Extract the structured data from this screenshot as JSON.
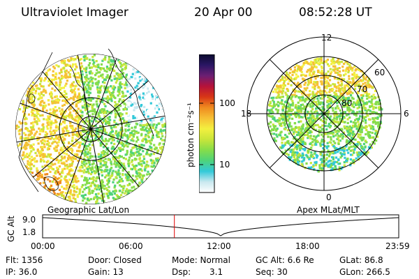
{
  "header": {
    "instrument": "Ultraviolet Imager",
    "date": "20 Apr 00",
    "time": "08:52:28 UT"
  },
  "colorbar": {
    "unit_label": "photon cm⁻²s⁻¹",
    "ticks": [
      "100",
      "10"
    ],
    "stops": [
      "#ffffff",
      "#c9e8ef",
      "#33c9d9",
      "#4ed37a",
      "#86dd4a",
      "#c9e53a",
      "#f3f03f",
      "#f6c035",
      "#ef8b1f",
      "#d83616",
      "#b5123a",
      "#6b1f73",
      "#2a1664",
      "#0b0b2e"
    ]
  },
  "geo_map": {
    "caption": "Geographic Lat/Lon"
  },
  "polar_map": {
    "caption": "Apex MLat/MLT",
    "mlt_labels": {
      "top": "12",
      "bottom": "0",
      "left": "18",
      "right": "6"
    },
    "lat_labels": [
      "60",
      "70",
      "80"
    ]
  },
  "altitude_plot": {
    "ylabel": "GC Alt",
    "yticks": [
      "9.0",
      "1.8"
    ],
    "xticks": [
      "00:00",
      "06:00",
      "12:00",
      "18:00",
      "23:59"
    ],
    "marker_time": "08:52:28",
    "marker_color": "#e00000"
  },
  "status": {
    "flt": "Flt: 1356",
    "ip": "IP: 36.0",
    "door": "Door: Closed",
    "gain": "Gain: 13",
    "mode": "Mode: Normal",
    "dsp": "Dsp:",
    "dsp_value": "3.1",
    "gc_alt": "GC Alt: 6.6 Re",
    "seq": "Seq: 30",
    "glat": "GLat:  86.8",
    "glon": "GLon: 266.5"
  }
}
